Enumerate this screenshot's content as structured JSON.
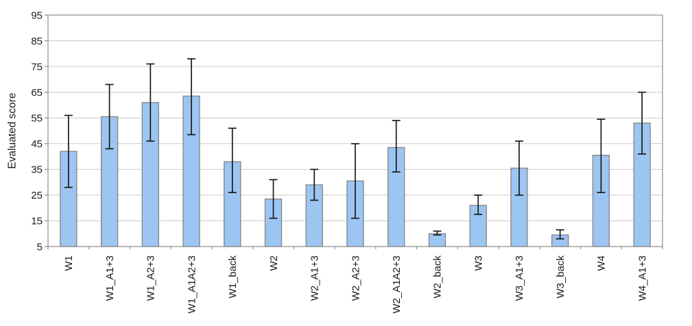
{
  "figure": {
    "background": "#FFFFFF"
  },
  "chart_data": {
    "type": "bar",
    "title": "",
    "xlabel": "",
    "ylabel": "Evaluated score",
    "ylim": [
      5,
      95
    ],
    "yticks": [
      5,
      15,
      25,
      35,
      45,
      55,
      65,
      75,
      85,
      95
    ],
    "grid": true,
    "legend": false,
    "categories": [
      "W1",
      "W1_A1+3",
      "W1_A2+3",
      "W1_A1A2+3",
      "W1_back",
      "W2",
      "W2_A1+3",
      "W2_A2+3",
      "W2_A1A2+3",
      "W2_back",
      "W3",
      "W3_A1+3",
      "W3_back",
      "W4",
      "W4_A1+3"
    ],
    "series": [
      {
        "name": "Evaluated score",
        "values": [
          42,
          55.5,
          61,
          63.5,
          38,
          23.5,
          29,
          30.5,
          43.5,
          10,
          21,
          35.5,
          9.5,
          40.5,
          53
        ],
        "error_upper": [
          56,
          68,
          76,
          78,
          51,
          31,
          35,
          45,
          54,
          11,
          25,
          46,
          11.5,
          54.5,
          65
        ],
        "error_lower": [
          28,
          43,
          46,
          48.5,
          26,
          16,
          23,
          16,
          34,
          9.5,
          17.5,
          25,
          8,
          26,
          41
        ]
      }
    ],
    "style": {
      "bar_fill": "#9CC5F2",
      "bar_border": "#848484",
      "grid_color": "#C9C9C9",
      "axis_color": "#8C8C8C",
      "error_color": "#1A1A1A",
      "text_color": "#1A1A1A"
    }
  }
}
